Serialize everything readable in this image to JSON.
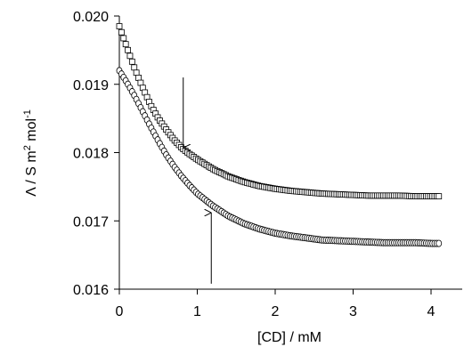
{
  "chart_data": {
    "type": "scatter",
    "xlabel": "[CD] / mM",
    "ylabel_parts": {
      "lambda": "Λ",
      "unit_prefix": " / S m",
      "sup1": "2",
      "unit_mid": " mol",
      "sup2": "-1"
    },
    "xlim": [
      0,
      4.4
    ],
    "ylim": [
      0.016,
      0.02
    ],
    "x_ticks": [
      0,
      1,
      2,
      3,
      4
    ],
    "x_tick_labels": [
      "0",
      "1",
      "2",
      "3",
      "4"
    ],
    "y_ticks": [
      0.016,
      0.017,
      0.018,
      0.019,
      0.02
    ],
    "y_tick_labels": [
      "0.016",
      "0.017",
      "0.018",
      "0.019",
      "0.020"
    ],
    "grid": false,
    "legend": "none",
    "series": [
      {
        "marker": "square",
        "x": [
          0,
          0.1,
          0.2,
          0.3,
          0.4,
          0.5,
          0.6,
          0.7,
          0.8,
          0.9,
          1.0,
          1.2,
          1.4,
          1.6,
          1.8,
          2.0,
          2.2,
          2.4,
          2.6,
          2.8,
          3.0,
          3.2,
          3.4,
          3.6,
          3.8,
          4.0,
          4.1
        ],
        "y": [
          0.01985,
          0.01953,
          0.01922,
          0.01895,
          0.0187,
          0.0185,
          0.01834,
          0.01819,
          0.01807,
          0.01798,
          0.0179,
          0.01776,
          0.01765,
          0.01757,
          0.01751,
          0.01747,
          0.01744,
          0.01742,
          0.0174,
          0.01739,
          0.01738,
          0.01737,
          0.01737,
          0.01737,
          0.01736,
          0.01736,
          0.01736
        ]
      },
      {
        "marker": "circle",
        "x": [
          0,
          0.1,
          0.2,
          0.3,
          0.4,
          0.5,
          0.6,
          0.7,
          0.8,
          0.9,
          1.0,
          1.2,
          1.4,
          1.6,
          1.8,
          2.0,
          2.2,
          2.4,
          2.6,
          2.8,
          3.0,
          3.2,
          3.4,
          3.6,
          3.8,
          4.0,
          4.1
        ],
        "y": [
          0.0192,
          0.01902,
          0.01882,
          0.0186,
          0.01838,
          0.01817,
          0.01797,
          0.0178,
          0.01765,
          0.01752,
          0.0174,
          0.01722,
          0.01707,
          0.01696,
          0.01688,
          0.01682,
          0.01678,
          0.01675,
          0.01672,
          0.01671,
          0.0167,
          0.01669,
          0.01668,
          0.01668,
          0.01668,
          0.01667,
          0.01667
        ]
      }
    ],
    "annotations": [
      {
        "type": "arrow",
        "direction": "down",
        "x": 0.82,
        "y_from": 0.0191,
        "y_to": 0.01807
      },
      {
        "type": "arrow",
        "direction": "up",
        "x": 1.18,
        "y_from": 0.01608,
        "y_to": 0.01712
      }
    ]
  }
}
